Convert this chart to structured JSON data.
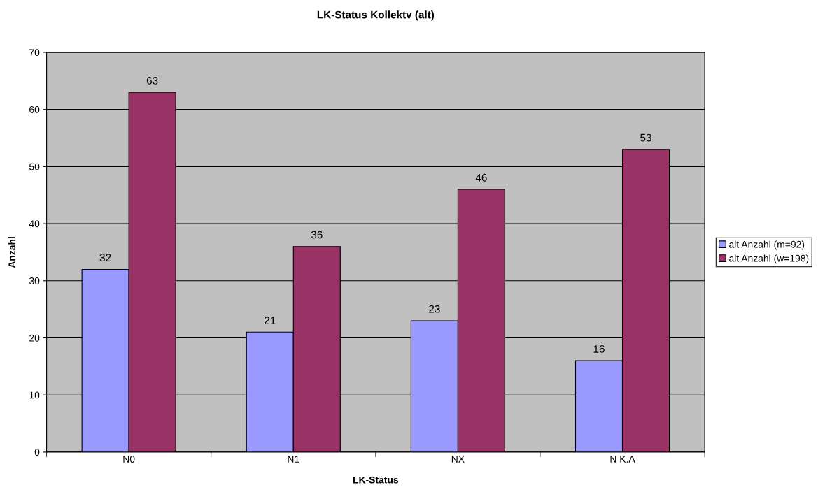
{
  "chart_data": {
    "type": "bar",
    "title": "LK-Status Kollektv (alt)",
    "xlabel": "LK-Status",
    "ylabel": "Anzahl",
    "categories": [
      "N0",
      "N1",
      "NX",
      "N K.A"
    ],
    "series": [
      {
        "name": "alt Anzahl (m=92)",
        "color": "#9999ff",
        "values": [
          32,
          21,
          23,
          16
        ]
      },
      {
        "name": "alt Anzahl (w=198)",
        "color": "#993366",
        "values": [
          63,
          36,
          46,
          53
        ]
      }
    ],
    "ylim": [
      0,
      70
    ],
    "yticks": [
      0,
      10,
      20,
      30,
      40,
      50,
      60,
      70
    ],
    "grid": "y",
    "legend": "right",
    "data_labels": true
  }
}
